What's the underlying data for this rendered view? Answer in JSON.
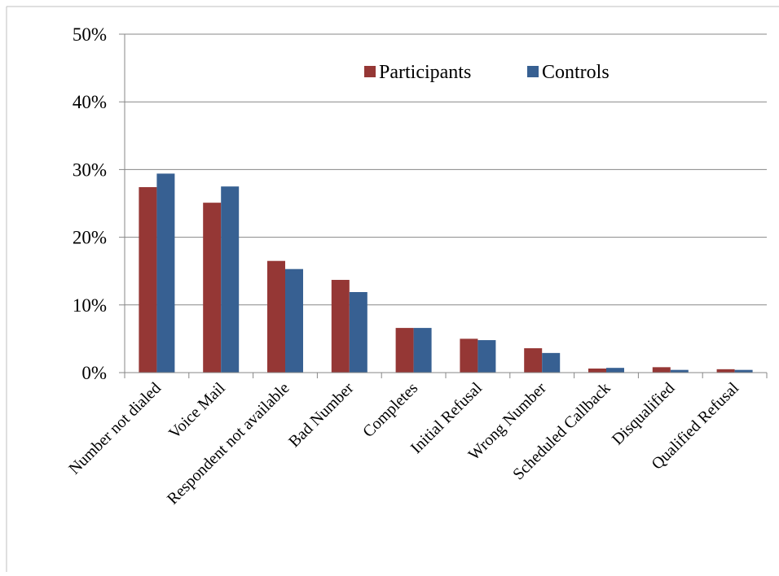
{
  "chart_data": {
    "type": "bar",
    "title": "",
    "xlabel": "",
    "ylabel": "",
    "ylim": [
      0,
      50
    ],
    "yticks": [
      "0%",
      "10%",
      "20%",
      "30%",
      "40%",
      "50%"
    ],
    "grid": true,
    "legend_position": "top-right",
    "categories": [
      "Number not dialed",
      "Voice Mail",
      "Respondent not available",
      "Bad Number",
      "Completes",
      "Initial Refusal",
      "Wrong Number",
      "Scheduled Callback",
      "Disqualified",
      "Qualified Refusal"
    ],
    "series": [
      {
        "name": "Participants",
        "color": "#953735",
        "values": [
          27.4,
          25.1,
          16.5,
          13.7,
          6.6,
          5.0,
          3.6,
          0.6,
          0.8,
          0.5
        ]
      },
      {
        "name": "Controls",
        "color": "#376092",
        "values": [
          29.4,
          27.5,
          15.3,
          11.9,
          6.6,
          4.8,
          2.9,
          0.7,
          0.4,
          0.4
        ]
      }
    ]
  }
}
